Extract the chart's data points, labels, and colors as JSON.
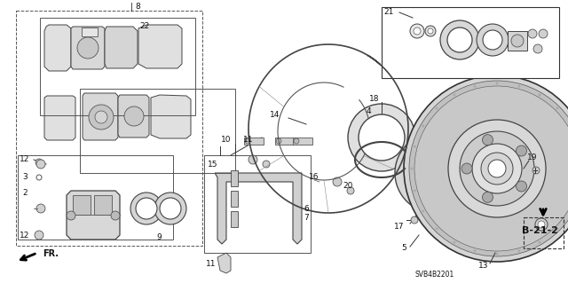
{
  "bg_color": "#ffffff",
  "text_color": "#111111",
  "line_color": "#333333",
  "fig_width": 6.4,
  "fig_height": 3.19,
  "dpi": 100,
  "diagram_code": "SVB4B2201",
  "ref_code": "B-21-2",
  "label_fontsize": 6.5,
  "small_fontsize": 5.5,
  "ref_fontsize": 8.5
}
